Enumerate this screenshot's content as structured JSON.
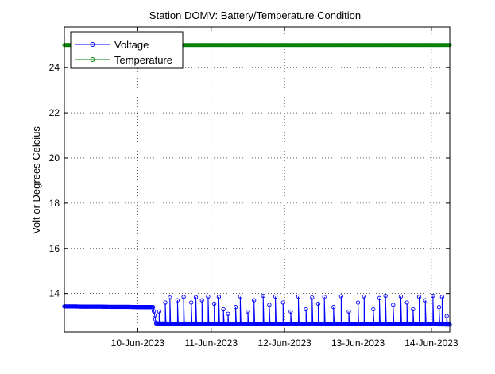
{
  "chart_data": {
    "type": "line",
    "title": "Station DOMV: Battery/Temperature Condition",
    "xlabel": "",
    "ylabel": "Volt or Degrees Celcius",
    "x_axis": "date",
    "xlim": [
      "2023-06-09T00:00",
      "2023-06-14T06:00"
    ],
    "ylim": [
      12.3,
      25.8
    ],
    "x_ticks": [
      {
        "value": "2023-06-10T00:00",
        "label": "10-Jun-2023"
      },
      {
        "value": "2023-06-11T00:00",
        "label": "11-Jun-2023"
      },
      {
        "value": "2023-06-12T00:00",
        "label": "12-Jun-2023"
      },
      {
        "value": "2023-06-13T00:00",
        "label": "13-Jun-2023"
      },
      {
        "value": "2023-06-14T00:00",
        "label": "14-Jun-2023"
      }
    ],
    "y_ticks": [
      14,
      16,
      18,
      20,
      22,
      24
    ],
    "grid": true,
    "legend_position": "top-left",
    "series": [
      {
        "name": "Voltage",
        "color": "#0000ff",
        "marker": "circle",
        "baseline_points": [
          [
            "2023-06-09T00:00",
            13.43
          ],
          [
            "2023-06-09T03:00",
            13.43
          ],
          [
            "2023-06-09T06:00",
            13.42
          ],
          [
            "2023-06-09T09:00",
            13.42
          ],
          [
            "2023-06-09T12:00",
            13.42
          ],
          [
            "2023-06-09T15:00",
            13.41
          ],
          [
            "2023-06-09T18:00",
            13.41
          ],
          [
            "2023-06-09T21:00",
            13.41
          ],
          [
            "2023-06-10T00:00",
            13.4
          ],
          [
            "2023-06-10T03:00",
            13.4
          ],
          [
            "2023-06-10T05:00",
            13.4
          ],
          [
            "2023-06-10T06:00",
            12.68
          ],
          [
            "2023-06-10T12:00",
            12.66
          ],
          [
            "2023-06-10T18:00",
            12.67
          ],
          [
            "2023-06-11T00:00",
            12.65
          ],
          [
            "2023-06-11T06:00",
            12.66
          ],
          [
            "2023-06-11T12:00",
            12.65
          ],
          [
            "2023-06-11T18:00",
            12.66
          ],
          [
            "2023-06-12T00:00",
            12.64
          ],
          [
            "2023-06-12T06:00",
            12.65
          ],
          [
            "2023-06-12T12:00",
            12.64
          ],
          [
            "2023-06-12T18:00",
            12.65
          ],
          [
            "2023-06-13T00:00",
            12.64
          ],
          [
            "2023-06-13T06:00",
            12.65
          ],
          [
            "2023-06-13T12:00",
            12.64
          ],
          [
            "2023-06-13T18:00",
            12.65
          ],
          [
            "2023-06-14T00:00",
            12.64
          ],
          [
            "2023-06-14T06:00",
            12.63
          ]
        ],
        "spikes": [
          [
            "2023-06-10T07:00",
            13.2
          ],
          [
            "2023-06-10T09:00",
            13.6
          ],
          [
            "2023-06-10T10:30",
            13.82
          ],
          [
            "2023-06-10T13:00",
            13.7
          ],
          [
            "2023-06-10T15:00",
            13.85
          ],
          [
            "2023-06-10T17:30",
            13.6
          ],
          [
            "2023-06-10T19:00",
            13.84
          ],
          [
            "2023-06-10T21:00",
            13.7
          ],
          [
            "2023-06-10T23:00",
            13.86
          ],
          [
            "2023-06-11T01:00",
            13.55
          ],
          [
            "2023-06-11T02:30",
            13.85
          ],
          [
            "2023-06-11T04:00",
            13.3
          ],
          [
            "2023-06-11T05:30",
            13.1
          ],
          [
            "2023-06-11T08:00",
            13.4
          ],
          [
            "2023-06-11T09:30",
            13.87
          ],
          [
            "2023-06-11T12:00",
            13.2
          ],
          [
            "2023-06-11T14:00",
            13.7
          ],
          [
            "2023-06-11T17:00",
            13.9
          ],
          [
            "2023-06-11T19:00",
            13.5
          ],
          [
            "2023-06-11T21:00",
            13.87
          ],
          [
            "2023-06-11T23:30",
            13.6
          ],
          [
            "2023-06-12T02:00",
            13.2
          ],
          [
            "2023-06-12T04:30",
            13.87
          ],
          [
            "2023-06-12T07:00",
            13.3
          ],
          [
            "2023-06-12T09:00",
            13.82
          ],
          [
            "2023-06-12T11:00",
            13.55
          ],
          [
            "2023-06-12T13:00",
            13.85
          ],
          [
            "2023-06-12T16:00",
            13.4
          ],
          [
            "2023-06-12T18:30",
            13.88
          ],
          [
            "2023-06-12T21:00",
            13.2
          ],
          [
            "2023-06-13T00:00",
            13.6
          ],
          [
            "2023-06-13T02:00",
            13.87
          ],
          [
            "2023-06-13T05:00",
            13.3
          ],
          [
            "2023-06-13T07:00",
            13.8
          ],
          [
            "2023-06-13T09:00",
            13.9
          ],
          [
            "2023-06-13T11:30",
            13.5
          ],
          [
            "2023-06-13T14:00",
            13.87
          ],
          [
            "2023-06-13T16:00",
            13.6
          ],
          [
            "2023-06-13T18:00",
            13.3
          ],
          [
            "2023-06-13T20:00",
            13.85
          ],
          [
            "2023-06-13T22:00",
            13.7
          ],
          [
            "2023-06-14T00:30",
            13.9
          ],
          [
            "2023-06-14T02:30",
            13.4
          ],
          [
            "2023-06-14T03:30",
            13.85
          ],
          [
            "2023-06-14T05:00",
            13.0
          ]
        ]
      },
      {
        "name": "Temperature",
        "color": "#008000",
        "marker": "circle",
        "points": [
          [
            "2023-06-09T00:00",
            25.0
          ],
          [
            "2023-06-10T00:00",
            25.0
          ],
          [
            "2023-06-11T00:00",
            25.0
          ],
          [
            "2023-06-12T00:00",
            25.0
          ],
          [
            "2023-06-13T00:00",
            25.0
          ],
          [
            "2023-06-14T00:00",
            25.0
          ],
          [
            "2023-06-14T06:00",
            25.0
          ]
        ]
      }
    ]
  }
}
